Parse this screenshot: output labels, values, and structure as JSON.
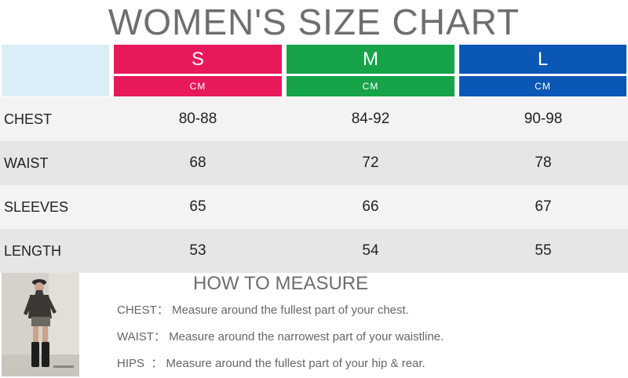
{
  "title": "WOMEN'S SIZE CHART",
  "sizes": [
    {
      "label": "S",
      "unit": "CM",
      "color": "#e8195b"
    },
    {
      "label": "M",
      "unit": "CM",
      "color": "#16a34a"
    },
    {
      "label": "L",
      "unit": "CM",
      "color": "#0b57b5"
    }
  ],
  "rows": [
    {
      "label": "CHEST",
      "values": [
        "80-88",
        "84-92",
        "90-98"
      ]
    },
    {
      "label": "WAIST",
      "values": [
        "68",
        "72",
        "78"
      ]
    },
    {
      "label": "SLEEVES",
      "values": [
        "65",
        "66",
        "67"
      ]
    },
    {
      "label": "LENGTH",
      "values": [
        "53",
        "54",
        "55"
      ]
    }
  ],
  "how_to": {
    "heading": "HOW TO MEASURE",
    "items": [
      {
        "key": "CHEST：",
        "text": "Measure around the fullest part of your chest."
      },
      {
        "key": "WAIST：",
        "text": "Measure around the narrowest part of your waistline."
      },
      {
        "key": "HIPS  ：",
        "text": "Measure around the fullest part of your hip & rear."
      }
    ]
  },
  "photo_icon": "model-photo"
}
